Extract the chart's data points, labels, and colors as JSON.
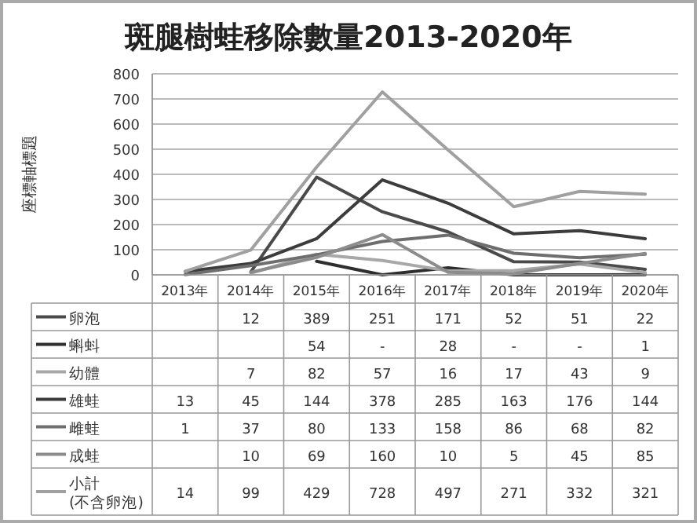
{
  "chart_data": {
    "type": "line",
    "title": "斑腿樹蛙移除數量2013-2020年",
    "ylabel": "座標軸標題",
    "categories": [
      "2013年",
      "2014年",
      "2015年",
      "2016年",
      "2017年",
      "2018年",
      "2019年",
      "2020年"
    ],
    "ylim": [
      0,
      800
    ],
    "yticks": [
      0,
      100,
      200,
      300,
      400,
      500,
      600,
      700,
      800
    ],
    "grid": "y",
    "legend": "bottom",
    "series": [
      {
        "name": "卵泡",
        "color": "#4a4a4a",
        "values": [
          null,
          12,
          389,
          251,
          171,
          52,
          51,
          22
        ],
        "value_labels": [
          null,
          "12",
          "389",
          "251",
          "171",
          "52",
          "51",
          "22"
        ]
      },
      {
        "name": "蝌蚪",
        "color": "#2e2e2e",
        "values": [
          null,
          null,
          54,
          0,
          28,
          0,
          0,
          1
        ],
        "value_labels": [
          null,
          null,
          "54",
          "-",
          "28",
          "-",
          "-",
          "1"
        ]
      },
      {
        "name": "幼體",
        "color": "#a8a8a8",
        "values": [
          null,
          7,
          82,
          57,
          16,
          17,
          43,
          9
        ],
        "value_labels": [
          null,
          "7",
          "82",
          "57",
          "16",
          "17",
          "43",
          "9"
        ]
      },
      {
        "name": "雄蛙",
        "color": "#3c3c3c",
        "values": [
          13,
          45,
          144,
          378,
          285,
          163,
          176,
          144
        ],
        "value_labels": [
          "13",
          "45",
          "144",
          "378",
          "285",
          "163",
          "176",
          "144"
        ]
      },
      {
        "name": "雌蛙",
        "color": "#6e6e6e",
        "values": [
          1,
          37,
          80,
          133,
          158,
          86,
          68,
          82
        ],
        "value_labels": [
          "1",
          "37",
          "80",
          "133",
          "158",
          "86",
          "68",
          "82"
        ]
      },
      {
        "name": "成蛙",
        "color": "#8c8c8c",
        "values": [
          null,
          10,
          69,
          160,
          10,
          5,
          45,
          85
        ],
        "value_labels": [
          null,
          "10",
          "69",
          "160",
          "10",
          "5",
          "45",
          "85"
        ]
      },
      {
        "name": "小計\n(不含卵泡)",
        "color": "#a0a0a0",
        "values": [
          14,
          99,
          429,
          728,
          497,
          271,
          332,
          321
        ],
        "value_labels": [
          "14",
          "99",
          "429",
          "728",
          "497",
          "271",
          "332",
          "321"
        ]
      }
    ]
  }
}
